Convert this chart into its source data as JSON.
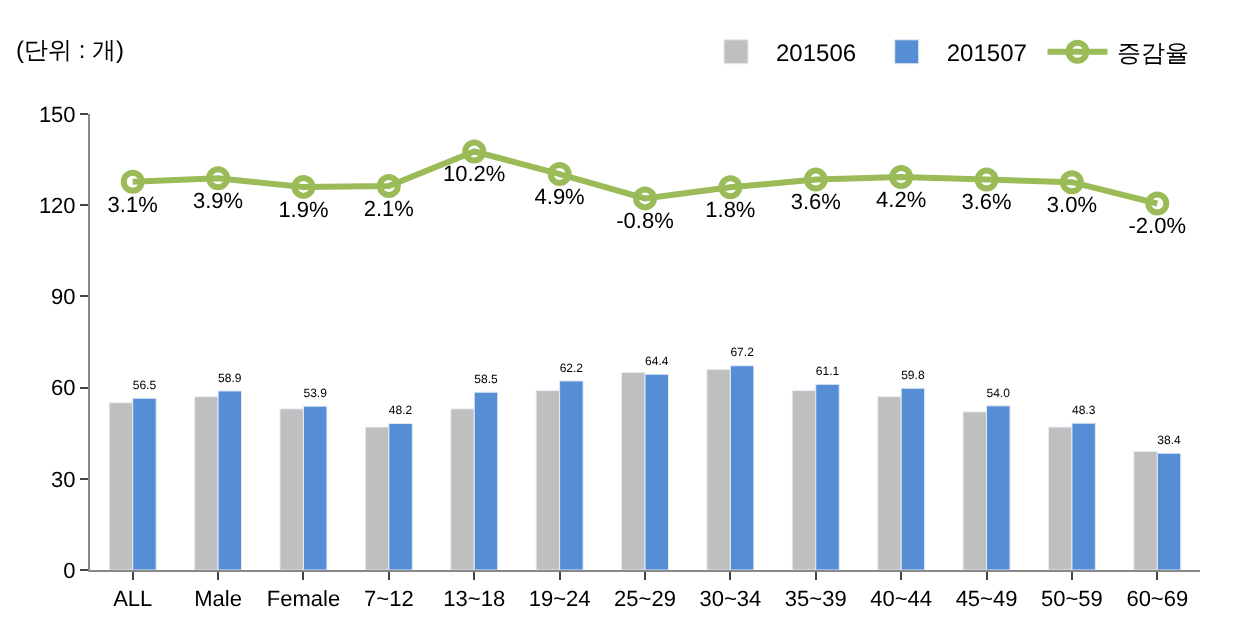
{
  "chart_data": {
    "type": "bar",
    "ylabel": "(단위 : 개)",
    "categories": [
      "ALL",
      "Male",
      "Female",
      "7~12",
      "13~18",
      "19~24",
      "25~29",
      "30~34",
      "35~39",
      "40~44",
      "45~49",
      "50~59",
      "60~69"
    ],
    "series": [
      {
        "name": "201506",
        "color": "#bfbfbf",
        "values": [
          55,
          57,
          53,
          47,
          53,
          59,
          65,
          66,
          59,
          57,
          52,
          47,
          39
        ]
      },
      {
        "name": "201507",
        "color": "#558ed5",
        "values": [
          56.5,
          58.9,
          53.9,
          48.2,
          58.5,
          62.2,
          64.4,
          67.2,
          61.1,
          59.8,
          54.0,
          48.3,
          38.4
        ],
        "value_labels": [
          "56.5",
          "58.9",
          "53.9",
          "48.2",
          "58.5",
          "62.2",
          "64.4",
          "67.2",
          "61.1",
          "59.8",
          "54.0",
          "48.3",
          "38.4"
        ]
      },
      {
        "name": "증감율",
        "type": "line",
        "axis": "y2",
        "color": "#9bbb59",
        "marker": "circle",
        "values": [
          3.1,
          3.9,
          1.9,
          2.1,
          10.2,
          4.9,
          -0.8,
          1.8,
          3.6,
          4.2,
          3.6,
          3.0,
          -2.0
        ],
        "value_labels": [
          "3.1%",
          "3.9%",
          "1.9%",
          "2.1%",
          "10.2%",
          "4.9%",
          "-0.8%",
          "1.8%",
          "3.6%",
          "4.2%",
          "3.6%",
          "3.0%",
          "-2.0%"
        ]
      }
    ],
    "ylim": [
      0,
      150
    ],
    "yticks": [
      0,
      30,
      60,
      90,
      120,
      150
    ],
    "y2lim": [
      -88,
      19
    ],
    "tick_labels": "xy",
    "legend": "top right"
  }
}
